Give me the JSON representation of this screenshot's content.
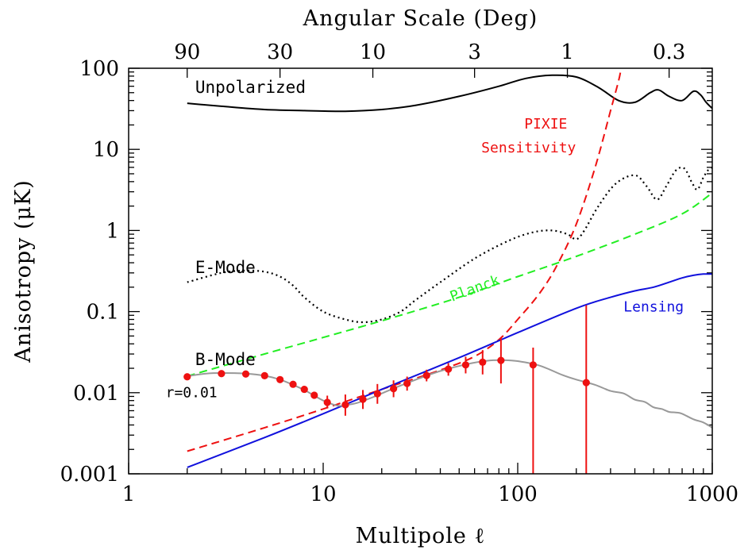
{
  "chart_data": {
    "type": "line",
    "scale": {
      "x": "log",
      "y": "log"
    },
    "xlim": [
      1,
      1000
    ],
    "ylim": [
      0.001,
      100
    ],
    "xlabel": "Multipole ℓ",
    "ylabel": "Anisotropy (μK)",
    "top_axis": {
      "label": "Angular Scale (Deg)",
      "tick_labels": [
        "90",
        "30",
        "10",
        "3",
        "1",
        "0.3"
      ],
      "tick_ells": [
        2,
        6,
        18,
        60,
        180,
        600
      ]
    },
    "x_tick_labels": [
      "1",
      "10",
      "100",
      "1000"
    ],
    "x_ticks": [
      1,
      10,
      100,
      1000
    ],
    "y_tick_labels": [
      "0.001",
      "0.01",
      "0.1",
      "1",
      "10",
      "100"
    ],
    "y_ticks": [
      0.001,
      0.01,
      0.1,
      1,
      10,
      100
    ],
    "series": [
      {
        "name": "Unpolarized",
        "color": "#000000",
        "style": "solid",
        "points": [
          [
            2,
            37
          ],
          [
            3,
            34
          ],
          [
            5,
            31
          ],
          [
            8,
            30
          ],
          [
            13,
            29.5
          ],
          [
            20,
            31
          ],
          [
            30,
            35
          ],
          [
            50,
            45
          ],
          [
            80,
            60
          ],
          [
            110,
            75
          ],
          [
            150,
            82
          ],
          [
            200,
            78
          ],
          [
            260,
            58
          ],
          [
            330,
            40
          ],
          [
            400,
            38
          ],
          [
            480,
            50
          ],
          [
            530,
            54
          ],
          [
            600,
            45
          ],
          [
            700,
            40
          ],
          [
            800,
            52
          ],
          [
            870,
            47
          ],
          [
            930,
            38
          ],
          [
            1000,
            32
          ]
        ]
      },
      {
        "name": "E-Mode",
        "color": "#000000",
        "style": "dotted",
        "points": [
          [
            2,
            0.23
          ],
          [
            3,
            0.3
          ],
          [
            4,
            0.32
          ],
          [
            5,
            0.31
          ],
          [
            6,
            0.27
          ],
          [
            7,
            0.21
          ],
          [
            8,
            0.15
          ],
          [
            10,
            0.1
          ],
          [
            13,
            0.08
          ],
          [
            16,
            0.074
          ],
          [
            20,
            0.08
          ],
          [
            25,
            0.1
          ],
          [
            30,
            0.14
          ],
          [
            40,
            0.23
          ],
          [
            60,
            0.45
          ],
          [
            90,
            0.75
          ],
          [
            120,
            0.95
          ],
          [
            150,
            1.0
          ],
          [
            180,
            0.9
          ],
          [
            200,
            0.78
          ],
          [
            220,
            1.0
          ],
          [
            260,
            2.0
          ],
          [
            320,
            3.8
          ],
          [
            400,
            4.8
          ],
          [
            460,
            3.5
          ],
          [
            520,
            2.4
          ],
          [
            580,
            3.5
          ],
          [
            650,
            5.5
          ],
          [
            720,
            5.8
          ],
          [
            790,
            3.8
          ],
          [
            840,
            3.2
          ],
          [
            900,
            4.5
          ],
          [
            950,
            5.5
          ],
          [
            1000,
            6.0
          ]
        ]
      },
      {
        "name": "Planck",
        "color": "#22ee22",
        "style": "dashed",
        "points": [
          [
            2,
            0.016
          ],
          [
            5,
            0.03
          ],
          [
            10,
            0.048
          ],
          [
            20,
            0.077
          ],
          [
            50,
            0.15
          ],
          [
            100,
            0.27
          ],
          [
            200,
            0.48
          ],
          [
            400,
            0.9
          ],
          [
            700,
            1.6
          ],
          [
            1000,
            2.9
          ]
        ]
      },
      {
        "name": "PIXIE Sensitivity",
        "color": "#ee1111",
        "style": "dashed",
        "points": [
          [
            2,
            0.0019
          ],
          [
            5,
            0.0037
          ],
          [
            10,
            0.0063
          ],
          [
            20,
            0.011
          ],
          [
            40,
            0.019
          ],
          [
            60,
            0.028
          ],
          [
            80,
            0.045
          ],
          [
            100,
            0.08
          ],
          [
            130,
            0.17
          ],
          [
            160,
            0.38
          ],
          [
            200,
            1.2
          ],
          [
            250,
            6.0
          ],
          [
            300,
            30
          ],
          [
            330,
            70
          ],
          [
            340,
            100
          ]
        ]
      },
      {
        "name": "Lensing",
        "color": "#1111dd",
        "style": "solid",
        "points": [
          [
            2,
            0.0012
          ],
          [
            5,
            0.0028
          ],
          [
            10,
            0.0055
          ],
          [
            20,
            0.011
          ],
          [
            50,
            0.027
          ],
          [
            100,
            0.055
          ],
          [
            200,
            0.11
          ],
          [
            300,
            0.15
          ],
          [
            400,
            0.18
          ],
          [
            500,
            0.2
          ],
          [
            600,
            0.23
          ],
          [
            700,
            0.26
          ],
          [
            800,
            0.28
          ],
          [
            900,
            0.29
          ],
          [
            1000,
            0.29
          ]
        ]
      },
      {
        "name": "B-Mode",
        "color": "#999999",
        "style": "solid",
        "points": [
          [
            2,
            0.016
          ],
          [
            2.5,
            0.0172
          ],
          [
            3,
            0.0175
          ],
          [
            4,
            0.0172
          ],
          [
            5,
            0.0162
          ],
          [
            6,
            0.0145
          ],
          [
            7,
            0.0125
          ],
          [
            8,
            0.0108
          ],
          [
            9,
            0.0092
          ],
          [
            10,
            0.008
          ],
          [
            11,
            0.0073
          ],
          [
            12,
            0.0069
          ],
          [
            13,
            0.007
          ],
          [
            15,
            0.0075
          ],
          [
            18,
            0.0088
          ],
          [
            22,
            0.0108
          ],
          [
            30,
            0.0145
          ],
          [
            40,
            0.0185
          ],
          [
            55,
            0.0225
          ],
          [
            70,
            0.0248
          ],
          [
            85,
            0.0252
          ],
          [
            100,
            0.0245
          ],
          [
            130,
            0.0215
          ],
          [
            170,
            0.0165
          ],
          [
            200,
            0.0145
          ],
          [
            250,
            0.0125
          ],
          [
            300,
            0.0105
          ],
          [
            350,
            0.0098
          ],
          [
            400,
            0.0082
          ],
          [
            450,
            0.0077
          ],
          [
            500,
            0.0066
          ],
          [
            550,
            0.0063
          ],
          [
            600,
            0.0058
          ],
          [
            650,
            0.0057
          ],
          [
            700,
            0.0055
          ],
          [
            800,
            0.0047
          ],
          [
            900,
            0.0043
          ],
          [
            1000,
            0.0037
          ]
        ]
      }
    ],
    "error_points": {
      "name": "r=0.01",
      "color": "#ee1111",
      "points": [
        {
          "x": 2,
          "y": 0.0157
        },
        {
          "x": 3,
          "y": 0.0172
        },
        {
          "x": 4,
          "y": 0.017
        },
        {
          "x": 5,
          "y": 0.0162
        },
        {
          "x": 6,
          "y": 0.0145
        },
        {
          "x": 7,
          "y": 0.0127
        },
        {
          "x": 8,
          "y": 0.011
        },
        {
          "x": 9,
          "y": 0.0093
        },
        {
          "x": 10.5,
          "y": 0.0076,
          "err": [
            0.0064,
            0.0092
          ]
        },
        {
          "x": 13,
          "y": 0.0071,
          "err": [
            0.0052,
            0.0095
          ]
        },
        {
          "x": 16,
          "y": 0.0083,
          "err": [
            0.0063,
            0.0108
          ]
        },
        {
          "x": 19,
          "y": 0.0097,
          "err": [
            0.0073,
            0.0128
          ]
        },
        {
          "x": 23,
          "y": 0.0112,
          "err": [
            0.0088,
            0.0142
          ]
        },
        {
          "x": 27,
          "y": 0.013,
          "err": [
            0.0106,
            0.0158
          ]
        },
        {
          "x": 34,
          "y": 0.0163,
          "err": [
            0.0138,
            0.0192
          ]
        },
        {
          "x": 44,
          "y": 0.0195,
          "err": [
            0.0162,
            0.0232
          ]
        },
        {
          "x": 54,
          "y": 0.022,
          "err": [
            0.0173,
            0.0278
          ]
        },
        {
          "x": 66,
          "y": 0.0238,
          "err": [
            0.0168,
            0.0335
          ]
        },
        {
          "x": 82,
          "y": 0.025,
          "err": [
            0.013,
            0.048
          ]
        },
        {
          "x": 120,
          "y": 0.022,
          "err": [
            0.001,
            0.036
          ]
        },
        {
          "x": 225,
          "y": 0.0133,
          "err": [
            0.001,
            0.12
          ]
        }
      ]
    },
    "annotations": [
      {
        "text": "Unpolarized",
        "color": "#000000",
        "x": 2.2,
        "y": 50
      },
      {
        "text": "E-Mode",
        "color": "#000000",
        "x": 2.2,
        "y": 0.3
      },
      {
        "text": "B-Mode",
        "color": "#000000",
        "x": 2.2,
        "y": 0.022
      },
      {
        "text": "r=0.01",
        "color": "#000000",
        "x": 1.55,
        "y": 0.0088
      },
      {
        "text": "Planck",
        "color": "#22ee22",
        "x": 46,
        "y": 0.133,
        "rotate": -20
      },
      {
        "text": "PIXIE",
        "color": "#ee1111",
        "x": 108,
        "y": 18
      },
      {
        "text": "Sensitivity",
        "color": "#ee1111",
        "x": 65,
        "y": 9.2
      },
      {
        "text": "Lensing",
        "color": "#1111dd",
        "x": 350,
        "y": 0.1
      }
    ]
  }
}
